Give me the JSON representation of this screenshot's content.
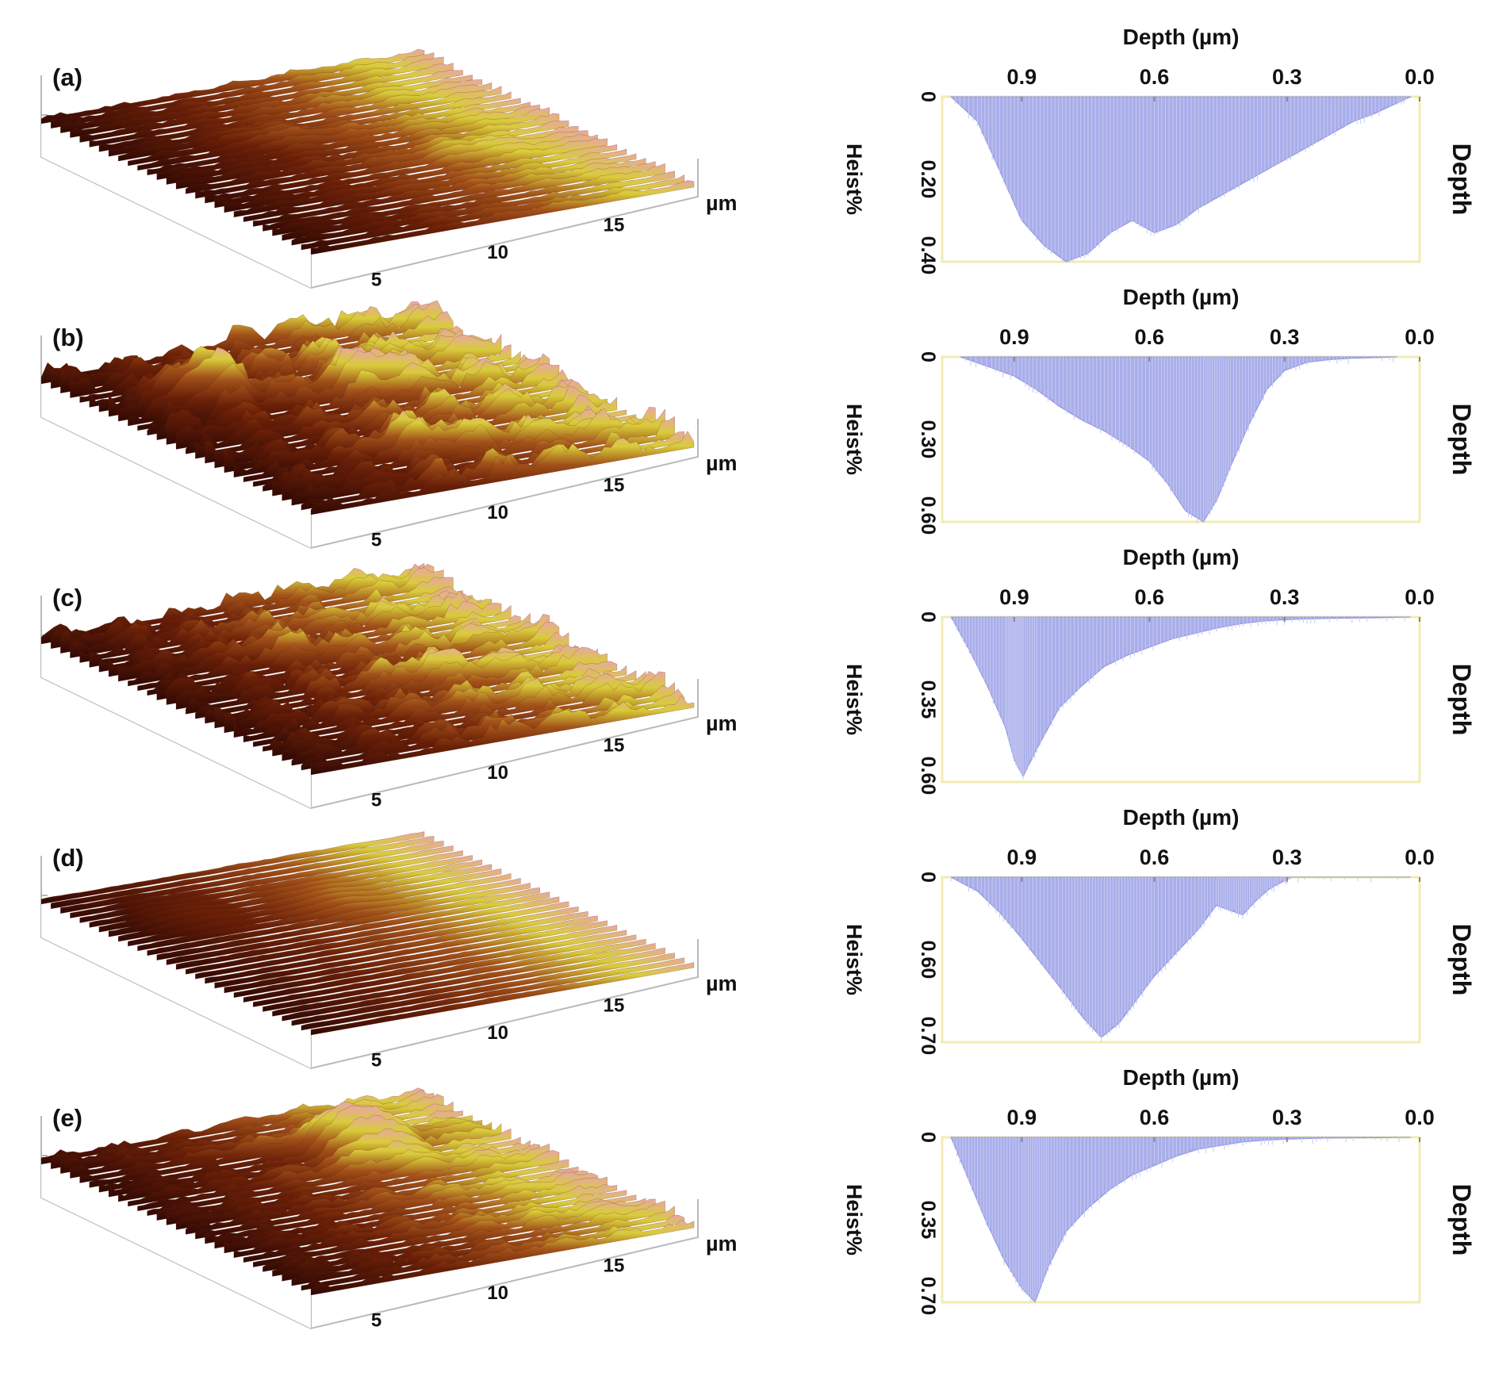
{
  "figure": {
    "surface_axis_unit": "µm",
    "histogram_xlabel": "Depth (µm)",
    "histogram_ylabel": "Heist%",
    "histogram_right_label": "Depth",
    "colors": {
      "hist_fill": "#a9aeea",
      "frame": "#f1ecb4",
      "surface_dark": "#3a0a05",
      "surface_mid": "#8a3a12",
      "surface_light": "#d8cc3a",
      "surface_peak": "#e8a7a4"
    }
  },
  "panels": [
    {
      "label": "(a)",
      "roughness": 0.15,
      "ticks": [
        "5",
        "10",
        "15"
      ],
      "peaks": [
        {
          "u": 0.35,
          "v": 0.35,
          "h": 0.2
        },
        {
          "u": 0.7,
          "v": 0.6,
          "h": 0.15
        }
      ]
    },
    {
      "label": "(b)",
      "roughness": 0.6,
      "ticks": [
        "5",
        "10",
        "15"
      ],
      "peaks": [
        {
          "u": 0.22,
          "v": 0.3,
          "h": 1.0
        },
        {
          "u": 0.6,
          "v": 0.35,
          "h": 0.7
        },
        {
          "u": 0.45,
          "v": 0.75,
          "h": 0.45
        }
      ]
    },
    {
      "label": "(c)",
      "roughness": 0.5,
      "ticks": [
        "5",
        "10",
        "15"
      ],
      "peaks": [
        {
          "u": 0.4,
          "v": 0.3,
          "h": 0.35
        },
        {
          "u": 0.6,
          "v": 0.6,
          "h": 0.3
        }
      ]
    },
    {
      "label": "(d)",
      "roughness": 0.03,
      "ticks": [
        "5",
        "10",
        "15"
      ],
      "peaks": [
        {
          "u": 0.2,
          "v": 0.25,
          "h": 0.15
        },
        {
          "u": 0.55,
          "v": 0.3,
          "h": 0.15
        }
      ]
    },
    {
      "label": "(e)",
      "roughness": 0.25,
      "ticks": [
        "5",
        "10",
        "15"
      ],
      "peaks": [
        {
          "u": 0.65,
          "v": 0.25,
          "h": 1.0
        }
      ]
    }
  ],
  "chart_data": [
    {
      "type": "area",
      "panel": "(a)",
      "title": "Depth (µm)",
      "xlabel": "Depth (µm)",
      "ylabel": "Heist%",
      "x_ticks": [
        "0.9",
        "0.6",
        "0.3",
        "0.0"
      ],
      "y_ticks": [
        "0",
        "0.20",
        "0.40"
      ],
      "xlim": [
        1.08,
        0.0
      ],
      "ylim": [
        0,
        0.4
      ],
      "x": [
        1.06,
        1.0,
        0.95,
        0.9,
        0.85,
        0.8,
        0.75,
        0.7,
        0.65,
        0.6,
        0.55,
        0.5,
        0.45,
        0.4,
        0.35,
        0.3,
        0.25,
        0.2,
        0.15,
        0.1,
        0.05,
        0.02
      ],
      "y": [
        0.0,
        0.06,
        0.18,
        0.3,
        0.36,
        0.4,
        0.38,
        0.33,
        0.3,
        0.33,
        0.31,
        0.27,
        0.24,
        0.21,
        0.18,
        0.15,
        0.12,
        0.09,
        0.06,
        0.04,
        0.015,
        0.0
      ]
    },
    {
      "type": "area",
      "panel": "(b)",
      "title": "Depth (µm)",
      "xlabel": "Depth (µm)",
      "ylabel": "Heist%",
      "x_ticks": [
        "0.9",
        "0.6",
        "0.3",
        "0.0"
      ],
      "y_ticks": [
        "0",
        "0.30",
        "0.60"
      ],
      "xlim": [
        1.06,
        0.0
      ],
      "ylim": [
        0,
        0.6
      ],
      "x": [
        1.02,
        0.95,
        0.9,
        0.85,
        0.8,
        0.75,
        0.7,
        0.65,
        0.6,
        0.56,
        0.52,
        0.48,
        0.45,
        0.42,
        0.38,
        0.34,
        0.3,
        0.25,
        0.2,
        0.15,
        0.1,
        0.05
      ],
      "y": [
        0.0,
        0.04,
        0.07,
        0.12,
        0.18,
        0.23,
        0.27,
        0.32,
        0.38,
        0.46,
        0.56,
        0.6,
        0.52,
        0.4,
        0.25,
        0.12,
        0.05,
        0.02,
        0.01,
        0.005,
        0.003,
        0.0
      ]
    },
    {
      "type": "area",
      "panel": "(c)",
      "title": "Depth (µm)",
      "xlabel": "Depth (µm)",
      "ylabel": "Heist%",
      "x_ticks": [
        "0.9",
        "0.6",
        "0.3",
        "0.0"
      ],
      "y_ticks": [
        "0",
        "0.35",
        "0.60"
      ],
      "xlim": [
        1.06,
        0.0
      ],
      "ylim": [
        0,
        0.6
      ],
      "x": [
        1.04,
        1.0,
        0.96,
        0.92,
        0.9,
        0.88,
        0.85,
        0.8,
        0.75,
        0.7,
        0.65,
        0.6,
        0.55,
        0.5,
        0.45,
        0.4,
        0.35,
        0.3,
        0.25,
        0.2,
        0.1,
        0.02
      ],
      "y": [
        0.0,
        0.12,
        0.25,
        0.4,
        0.52,
        0.58,
        0.48,
        0.33,
        0.25,
        0.18,
        0.14,
        0.11,
        0.08,
        0.06,
        0.04,
        0.025,
        0.015,
        0.01,
        0.007,
        0.005,
        0.003,
        0.0
      ]
    },
    {
      "type": "area",
      "panel": "(d)",
      "title": "Depth (µm)",
      "xlabel": "Depth (µm)",
      "ylabel": "Heist%",
      "x_ticks": [
        "0.9",
        "0.6",
        "0.3",
        "0.0"
      ],
      "y_ticks": [
        "0",
        "0.60",
        "0.70"
      ],
      "xlim": [
        1.08,
        0.0
      ],
      "ylim": [
        0,
        0.7
      ],
      "x": [
        1.06,
        1.0,
        0.95,
        0.9,
        0.85,
        0.8,
        0.76,
        0.72,
        0.68,
        0.64,
        0.6,
        0.55,
        0.5,
        0.46,
        0.43,
        0.4,
        0.37,
        0.34,
        0.31,
        0.29,
        0.2,
        0.02
      ],
      "y": [
        0.0,
        0.06,
        0.15,
        0.26,
        0.38,
        0.5,
        0.6,
        0.68,
        0.62,
        0.52,
        0.42,
        0.32,
        0.22,
        0.12,
        0.14,
        0.16,
        0.1,
        0.05,
        0.02,
        0.0,
        0.0,
        0.0
      ]
    },
    {
      "type": "area",
      "panel": "(e)",
      "title": "Depth (µm)",
      "xlabel": "Depth (µm)",
      "ylabel": "Heist%",
      "x_ticks": [
        "0.9",
        "0.6",
        "0.3",
        "0.0"
      ],
      "y_ticks": [
        "0",
        "0.35",
        "0.70"
      ],
      "xlim": [
        1.08,
        0.0
      ],
      "ylim": [
        0,
        0.7
      ],
      "x": [
        1.06,
        1.02,
        0.98,
        0.94,
        0.9,
        0.87,
        0.84,
        0.8,
        0.75,
        0.7,
        0.65,
        0.6,
        0.55,
        0.5,
        0.45,
        0.4,
        0.35,
        0.3,
        0.25,
        0.2,
        0.1,
        0.02
      ],
      "y": [
        0.0,
        0.18,
        0.36,
        0.52,
        0.64,
        0.7,
        0.55,
        0.4,
        0.3,
        0.22,
        0.16,
        0.12,
        0.08,
        0.05,
        0.035,
        0.02,
        0.012,
        0.008,
        0.005,
        0.003,
        0.002,
        0.0
      ]
    }
  ]
}
